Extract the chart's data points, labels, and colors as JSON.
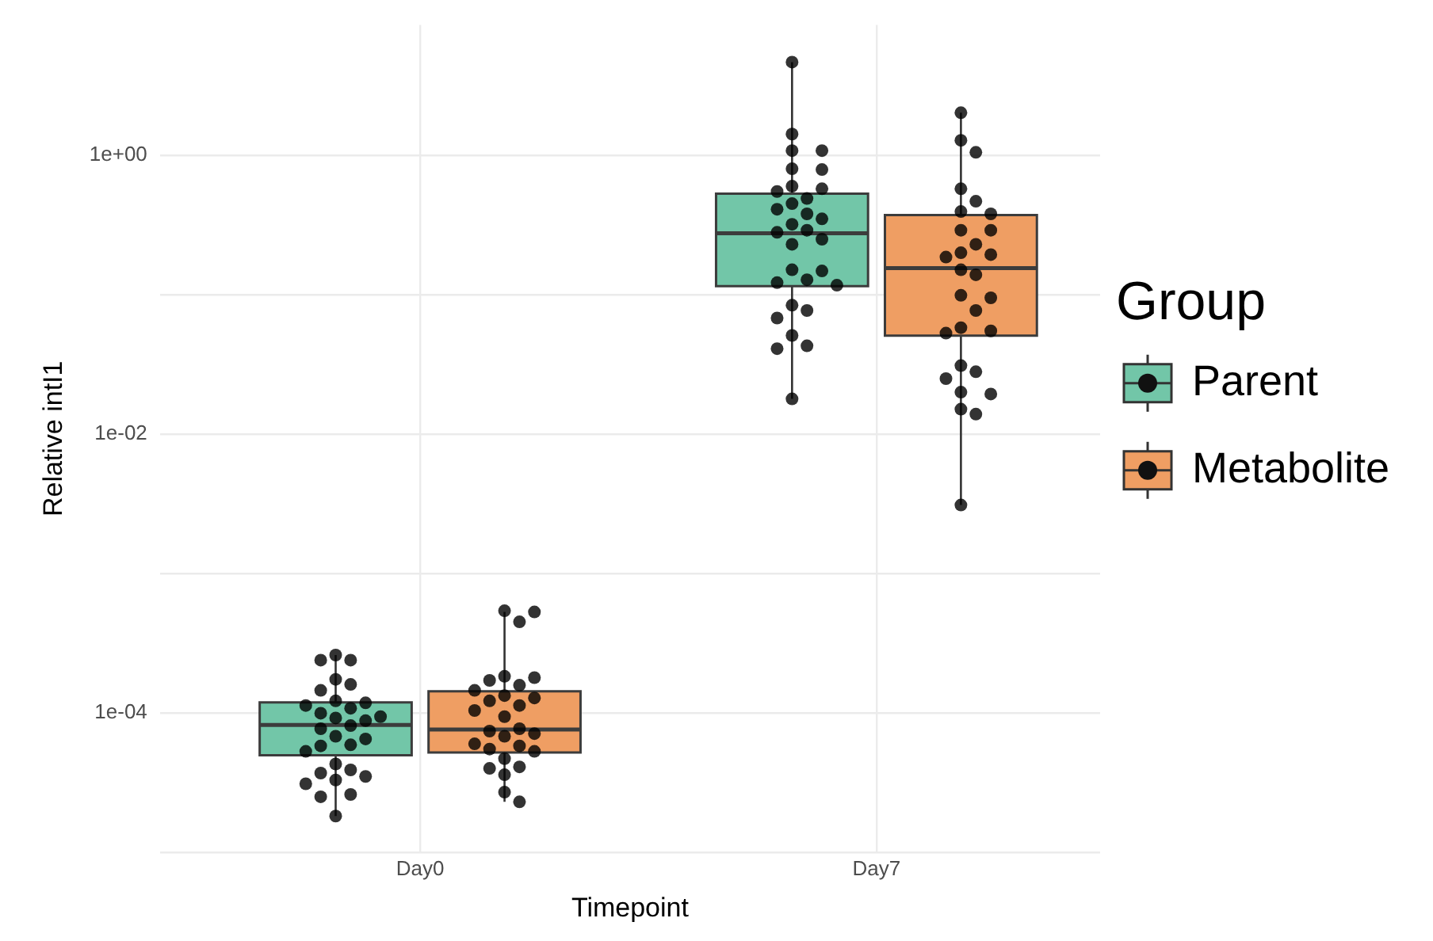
{
  "chart_data": {
    "type": "box",
    "xlabel": "Timepoint",
    "ylabel": "Relative intI1",
    "legend_title": "Group",
    "legend": "right",
    "grid": true,
    "log": "y",
    "categories": [
      "Day0",
      "Day7"
    ],
    "ylim": [
      1e-05,
      8.6
    ],
    "yticks": [
      {
        "value": 1e-05,
        "label": null
      },
      {
        "value": 0.0001,
        "label": "1e-04"
      },
      {
        "value": 0.001,
        "label": null
      },
      {
        "value": 0.01,
        "label": "1e-02"
      },
      {
        "value": 0.1,
        "label": null
      },
      {
        "value": 1,
        "label": "1e+00"
      }
    ],
    "series": [
      {
        "name": "Parent",
        "color": "#72c6a8",
        "boxes": [
          {
            "low": 1.82e-05,
            "q1": 4.97e-05,
            "median": 8.2e-05,
            "q3": 0.000119,
            "high": 0.00026
          },
          {
            "low": 0.0179,
            "q1": 0.115,
            "median": 0.276,
            "q3": 0.53,
            "high": 4.66
          }
        ]
      },
      {
        "name": "Metabolite",
        "color": "#ef9e63",
        "boxes": [
          {
            "low": 2.3e-05,
            "q1": 5.2e-05,
            "median": 7.6e-05,
            "q3": 0.000143,
            "high": 0.00053
          },
          {
            "low": 0.0031,
            "q1": 0.0508,
            "median": 0.155,
            "q3": 0.373,
            "high": 2.02
          }
        ]
      },
      {
        "type": "scatter",
        "color": "#000000",
        "x": [
          "Day0",
          "Day0",
          "Day0",
          "Day0",
          "Day0",
          "Day0",
          "Day0",
          "Day0",
          "Day0",
          "Day0",
          "Day0",
          "Day0",
          "Day0",
          "Day0",
          "Day0",
          "Day0",
          "Day0",
          "Day0",
          "Day0",
          "Day0",
          "Day0",
          "Day0",
          "Day0",
          "Day0",
          "Day0",
          "Day0",
          "Day0",
          "Day0",
          "Day0",
          "Day0",
          "Day7",
          "Day7",
          "Day7",
          "Day7",
          "Day7",
          "Day7",
          "Day7",
          "Day7",
          "Day7",
          "Day7",
          "Day7",
          "Day7",
          "Day7",
          "Day7",
          "Day7",
          "Day7",
          "Day7",
          "Day7",
          "Day7",
          "Day7",
          "Day7",
          "Day7",
          "Day7",
          "Day7",
          "Day7",
          "Day7",
          "Day7",
          "Day7",
          "Day7",
          "Day7",
          "Day7"
        ],
        "values": [
          0.00026,
          0.000239,
          0.000239,
          0.000174,
          0.00016,
          0.000145,
          0.000122,
          0.000118,
          0.000113,
          0.000108,
          9.95e-05,
          9.4e-05,
          9.2e-05,
          8.8e-05,
          8.1e-05,
          7.7e-05,
          6.8e-05,
          6.5e-05,
          5.9e-05,
          5.8e-05,
          5.3e-05,
          4.3e-05,
          3.9e-05,
          3.7e-05,
          3.5e-05,
          3.3e-05,
          3.1e-05,
          2.6e-05,
          2.5e-05,
          1.82e-05,
          4.66,
          1.42,
          1.08,
          1.08,
          0.8,
          0.79,
          0.6,
          0.575,
          0.55,
          0.49,
          0.45,
          0.41,
          0.38,
          0.35,
          0.32,
          0.29,
          0.28,
          0.25,
          0.23,
          0.151,
          0.148,
          0.128,
          0.122,
          0.117,
          0.084,
          0.077,
          0.068,
          0.051,
          0.043,
          0.041,
          0.0179
        ]
      },
      {
        "type": "scatter",
        "color": "#000000",
        "x": [
          "Day0",
          "Day0",
          "Day0",
          "Day0",
          "Day0",
          "Day0",
          "Day0",
          "Day0",
          "Day0",
          "Day0",
          "Day0",
          "Day0",
          "Day0",
          "Day0",
          "Day0",
          "Day0",
          "Day0",
          "Day0",
          "Day0",
          "Day0",
          "Day0",
          "Day0",
          "Day0",
          "Day0",
          "Day0",
          "Day0",
          "Day0",
          "Day0",
          "Day7",
          "Day7",
          "Day7",
          "Day7",
          "Day7",
          "Day7",
          "Day7",
          "Day7",
          "Day7",
          "Day7",
          "Day7",
          "Day7",
          "Day7",
          "Day7",
          "Day7",
          "Day7",
          "Day7",
          "Day7",
          "Day7",
          "Day7",
          "Day7",
          "Day7",
          "Day7",
          "Day7",
          "Day7",
          "Day7",
          "Day7",
          "Day7",
          "Day7"
        ],
        "values": [
          0.00054,
          0.00053,
          0.00045,
          0.000183,
          0.000179,
          0.000171,
          0.000158,
          0.000145,
          0.000133,
          0.000128,
          0.000122,
          0.000113,
          0.000104,
          9.4e-05,
          7.7e-05,
          7.4e-05,
          7.1e-05,
          6.8e-05,
          6e-05,
          5.8e-05,
          5.5e-05,
          5.3e-05,
          4.7e-05,
          4.1e-05,
          4e-05,
          3.6e-05,
          2.7e-05,
          2.3e-05,
          2.02,
          1.28,
          1.05,
          0.575,
          0.468,
          0.395,
          0.38,
          0.29,
          0.29,
          0.23,
          0.2,
          0.194,
          0.186,
          0.151,
          0.139,
          0.099,
          0.095,
          0.077,
          0.058,
          0.055,
          0.053,
          0.031,
          0.028,
          0.025,
          0.02,
          0.0194,
          0.0151,
          0.0139,
          0.0031
        ]
      }
    ]
  }
}
